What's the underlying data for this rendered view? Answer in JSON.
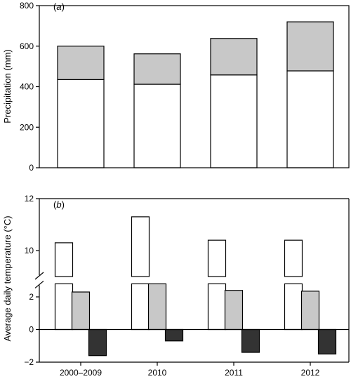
{
  "chart_data": [
    {
      "panel": "(a)",
      "panel_label_open": "(",
      "panel_label_letter": "a",
      "panel_label_close": ")",
      "type": "bar",
      "stacked": true,
      "categories": [
        "2000–2009",
        "2010",
        "2011",
        "2012"
      ],
      "series": [
        {
          "values": [
            435,
            412,
            458,
            478
          ],
          "color": "#ffffff"
        },
        {
          "values": [
            165,
            150,
            180,
            242
          ],
          "color": "#c8c8c8"
        }
      ],
      "ylabel": "Precipitation (mm)",
      "ylim": [
        0,
        800
      ],
      "yticks": [
        0,
        200,
        400,
        600,
        800
      ],
      "grid": false
    },
    {
      "panel": "(b)",
      "panel_label_open": "(",
      "panel_label_letter": "b",
      "panel_label_close": ")",
      "type": "bar",
      "grouped": true,
      "axis_break": [
        2.8,
        9
      ],
      "categories": [
        "2000–2009",
        "2010",
        "2011",
        "2012"
      ],
      "series": [
        {
          "values": [
            10.3,
            11.3,
            10.4,
            10.4
          ],
          "color": "#ffffff"
        },
        {
          "values": [
            2.3,
            2.8,
            2.4,
            2.35
          ],
          "color": "#c8c8c8"
        },
        {
          "values": [
            -1.6,
            -0.7,
            -1.4,
            -1.5
          ],
          "color": "#333333"
        }
      ],
      "ylabel": "Average daily temperature (°C)",
      "yticks": [
        -2,
        0,
        2,
        10,
        12
      ],
      "grid": false
    }
  ]
}
